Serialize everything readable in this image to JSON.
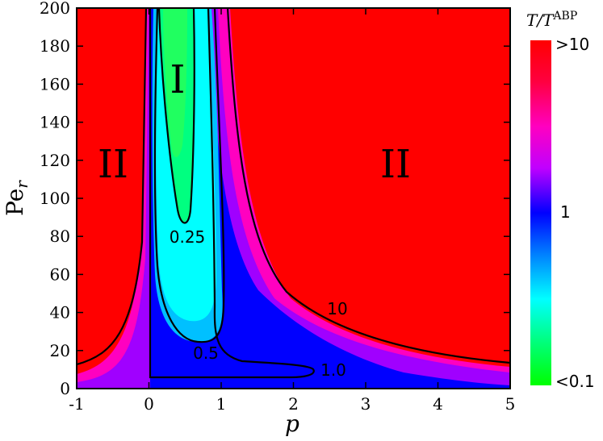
{
  "chart_data": {
    "type": "heatmap",
    "title": "",
    "xlabel": "p",
    "ylabel": "Pe_r",
    "xlim": [
      -1,
      5
    ],
    "ylim": [
      0,
      200
    ],
    "x_ticks": [
      "-1",
      "0",
      "1",
      "2",
      "3",
      "4",
      "5"
    ],
    "y_ticks": [
      "0",
      "20",
      "40",
      "60",
      "80",
      "100",
      "120",
      "140",
      "160",
      "180",
      "200"
    ],
    "colorbar": {
      "title": "T/T^ABP",
      "ticks": [
        ">10",
        "1",
        "<0.1"
      ],
      "colors": [
        "#ff0000",
        "#ff0080",
        "#ff00ff",
        "#8000ff",
        "#0000ff",
        "#0080ff",
        "#00ffff",
        "#00ff80",
        "#00ff00"
      ]
    },
    "regions": [
      {
        "label": "I",
        "x": 0.42,
        "y": 165
      },
      {
        "label": "II",
        "x": -0.5,
        "y": 118
      },
      {
        "label": "II",
        "x": 2.75,
        "y": 118
      }
    ],
    "contours": [
      {
        "level": "0.25",
        "label_x": 0.5,
        "label_y": 79
      },
      {
        "level": "0.5",
        "label_x": 0.75,
        "label_y": 16
      },
      {
        "level": "1.0",
        "label_x": 2.65,
        "label_y": 7
      },
      {
        "level": "10",
        "label_x": 2.6,
        "label_y": 40
      }
    ]
  }
}
